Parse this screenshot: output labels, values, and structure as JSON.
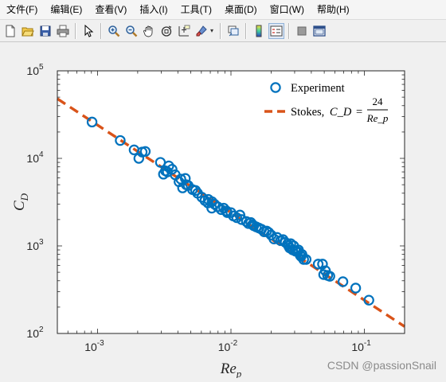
{
  "menu": {
    "items": [
      "文件(F)",
      "编辑(E)",
      "查看(V)",
      "插入(I)",
      "工具(T)",
      "桌面(D)",
      "窗口(W)",
      "帮助(H)"
    ]
  },
  "toolbar": {
    "icons": [
      "new-figure-icon",
      "open-file-icon",
      "save-icon",
      "print-icon",
      "select-arrow-icon",
      "zoom-in-icon",
      "zoom-out-icon",
      "pan-hand-icon",
      "rotate-3d-icon",
      "data-cursor-icon",
      "brush-icon",
      "link-icon",
      "colorbar-icon",
      "legend-icon",
      "hide-tools-icon",
      "dock-icon"
    ]
  },
  "colors": {
    "marker": "#0072BD",
    "fit": "#D95319",
    "axes_bg": "#ffffff"
  },
  "watermark": "CSDN @passionSnail",
  "chart_data": {
    "type": "scatter",
    "xscale": "log",
    "yscale": "log",
    "xlim": [
      0.0005,
      0.2
    ],
    "ylim": [
      100,
      100000
    ],
    "xlabel": "Re_p",
    "ylabel": "C_D",
    "x_ticks": [
      0.001,
      0.01,
      0.1
    ],
    "x_tick_labels": [
      {
        "base": "10",
        "exp": "-3"
      },
      {
        "base": "10",
        "exp": "-2"
      },
      {
        "base": "10",
        "exp": "-1"
      }
    ],
    "y_ticks": [
      100,
      1000,
      10000,
      100000
    ],
    "y_tick_labels": [
      {
        "base": "10",
        "exp": "2"
      },
      {
        "base": "10",
        "exp": "3"
      },
      {
        "base": "10",
        "exp": "4"
      },
      {
        "base": "10",
        "exp": "5"
      }
    ],
    "grid": false,
    "legend_position": "top-right",
    "series": [
      {
        "name": "Experiment",
        "kind": "markers",
        "marker": "circle",
        "x": [
          0.00091,
          0.00148,
          0.00188,
          0.00216,
          0.00204,
          0.00228,
          0.00296,
          0.00323,
          0.00312,
          0.00342,
          0.00362,
          0.00334,
          0.00382,
          0.00408,
          0.00434,
          0.00462,
          0.00421,
          0.00455,
          0.00478,
          0.00515,
          0.00543,
          0.00562,
          0.00605,
          0.00638,
          0.00676,
          0.00672,
          0.00721,
          0.00752,
          0.00718,
          0.00794,
          0.00845,
          0.00882,
          0.00928,
          0.00938,
          0.01001,
          0.01042,
          0.01105,
          0.01168,
          0.01201,
          0.01305,
          0.01352,
          0.01408,
          0.01452,
          0.01482,
          0.01548,
          0.01621,
          0.01694,
          0.01772,
          0.01853,
          0.01921,
          0.02002,
          0.02101,
          0.02218,
          0.02354,
          0.02458,
          0.02551,
          0.02653,
          0.02702,
          0.02752,
          0.02805,
          0.02898,
          0.02951,
          0.03048,
          0.03158,
          0.03204,
          0.03306,
          0.03351,
          0.03402,
          0.03503,
          0.03657,
          0.04505,
          0.04852,
          0.04952,
          0.05105,
          0.05303,
          0.05508,
          0.06902,
          0.08602,
          0.10802
        ],
        "y": [
          26000,
          16000,
          12500,
          11800,
          10000,
          12000,
          9000,
          7200,
          6600,
          8200,
          7500,
          7000,
          6500,
          5400,
          4600,
          5000,
          5800,
          5900,
          4900,
          4400,
          4300,
          4000,
          3600,
          3300,
          3400,
          3100,
          3200,
          3000,
          2700,
          2800,
          2600,
          2700,
          2500,
          2400,
          2400,
          2200,
          2100,
          2250,
          2000,
          1900,
          1800,
          1850,
          1750,
          1700,
          1650,
          1600,
          1550,
          1450,
          1480,
          1420,
          1330,
          1200,
          1250,
          1150,
          1180,
          1100,
          1050,
          1000,
          950,
          1060,
          900,
          1000,
          870,
          860,
          900,
          780,
          760,
          800,
          700,
          700,
          620,
          620,
          470,
          520,
          460,
          450,
          390,
          330,
          240
        ]
      },
      {
        "name": "Stokes, C_D = 24/Re_p",
        "kind": "dashed-line",
        "function": "24/x",
        "x": [
          0.0005,
          0.2
        ],
        "y": [
          48000,
          120
        ]
      }
    ],
    "legend": [
      {
        "label": "Experiment"
      },
      {
        "prefix": "Stokes,",
        "lhs": "C_D",
        "num": "24",
        "den": "Re_p"
      }
    ]
  }
}
